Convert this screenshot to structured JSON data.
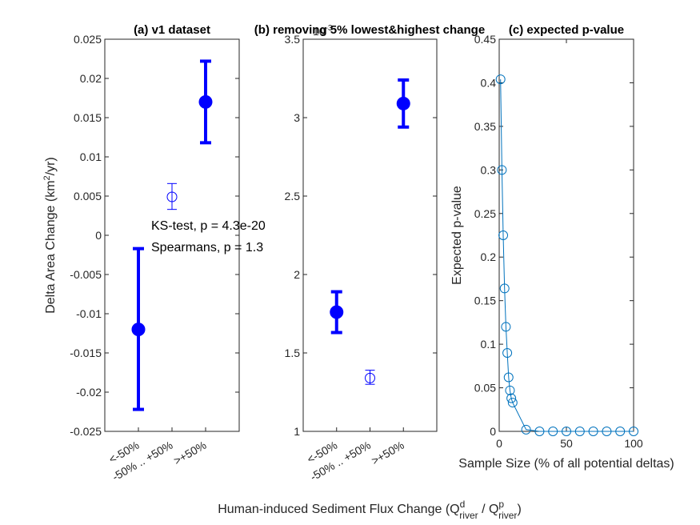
{
  "figure": {
    "shared_xlabel": {
      "main": "Human-induced Sediment Flux Change (Q",
      "sup1": "d",
      "sub1": "river",
      "mid": " / Q",
      "sup2": "p",
      "sub2": "river",
      "end": ")"
    }
  },
  "chart_data": [
    {
      "type": "scatter",
      "title": "(a) v1 dataset",
      "ylabel": {
        "pre": "Delta Area Change (km",
        "sup": "2",
        "post": "/yr)"
      },
      "categories": [
        "<-50%",
        "-50% .. +50%",
        ">+50%"
      ],
      "ylim": [
        -0.025,
        0.025
      ],
      "yticks": [
        -0.025,
        -0.02,
        -0.015,
        -0.01,
        -0.005,
        0,
        0.005,
        0.01,
        0.015,
        0.02,
        0.025
      ],
      "yticklabels": [
        "-0.025",
        "-0.02",
        "-0.015",
        "-0.01",
        "-0.005",
        "0",
        "0.005",
        "0.01",
        "0.015",
        "0.02",
        "0.025"
      ],
      "points": [
        {
          "category": "<-50%",
          "value": -0.012,
          "err_low": -0.0222,
          "err_high": -0.0017,
          "filled": true
        },
        {
          "category": "-50% .. +50%",
          "value": 0.0049,
          "err_low": 0.0033,
          "err_high": 0.0066,
          "filled": false
        },
        {
          "category": ">+50%",
          "value": 0.017,
          "err_low": 0.0118,
          "err_high": 0.0222,
          "filled": true
        }
      ],
      "annotations": [
        "KS-test, p =  4.3e-20",
        "Spearmans, p =  1.3"
      ],
      "color": "#0000ff"
    },
    {
      "type": "scatter",
      "title": "(b) removing 5% lowest&highest change",
      "exponent_label": "10",
      "exponent_sup": "-3",
      "categories": [
        "<-50%",
        "-50% .. +50%",
        ">+50%"
      ],
      "ylim": [
        1,
        3.5
      ],
      "yticks": [
        1,
        1.5,
        2,
        2.5,
        3,
        3.5
      ],
      "yticklabels": [
        "1",
        "1.5",
        "2",
        "2.5",
        "3",
        "3.5"
      ],
      "points": [
        {
          "category": "<-50%",
          "value": 1.76,
          "err_low": 1.63,
          "err_high": 1.89,
          "filled": true
        },
        {
          "category": "-50% .. +50%",
          "value": 1.34,
          "err_low": 1.3,
          "err_high": 1.39,
          "filled": false
        },
        {
          "category": ">+50%",
          "value": 3.09,
          "err_low": 2.94,
          "err_high": 3.24,
          "filled": true
        }
      ],
      "color": "#0000ff"
    },
    {
      "type": "line",
      "title": "(c) expected p-value",
      "xlabel": "Sample Size (% of all potential deltas)",
      "ylabel": "Expected p-value",
      "xlim": [
        0,
        100
      ],
      "ylim": [
        0,
        0.45
      ],
      "xticks": [
        0,
        50,
        100
      ],
      "yticks": [
        0,
        0.05,
        0.1,
        0.15,
        0.2,
        0.25,
        0.3,
        0.35,
        0.4,
        0.45
      ],
      "yticklabels": [
        "0",
        "0.05",
        "0.1",
        "0.15",
        "0.2",
        "0.25",
        "0.3",
        "0.35",
        "0.4",
        "0.45"
      ],
      "x": [
        1,
        2,
        3,
        4,
        5,
        6,
        7,
        8,
        9,
        10,
        20,
        30,
        40,
        50,
        60,
        70,
        80,
        90,
        100
      ],
      "y": [
        0.404,
        0.3,
        0.225,
        0.164,
        0.12,
        0.09,
        0.062,
        0.047,
        0.038,
        0.033,
        0.002,
        0,
        0,
        0,
        0,
        0,
        0,
        0,
        0
      ],
      "color": "#0072bd"
    }
  ]
}
